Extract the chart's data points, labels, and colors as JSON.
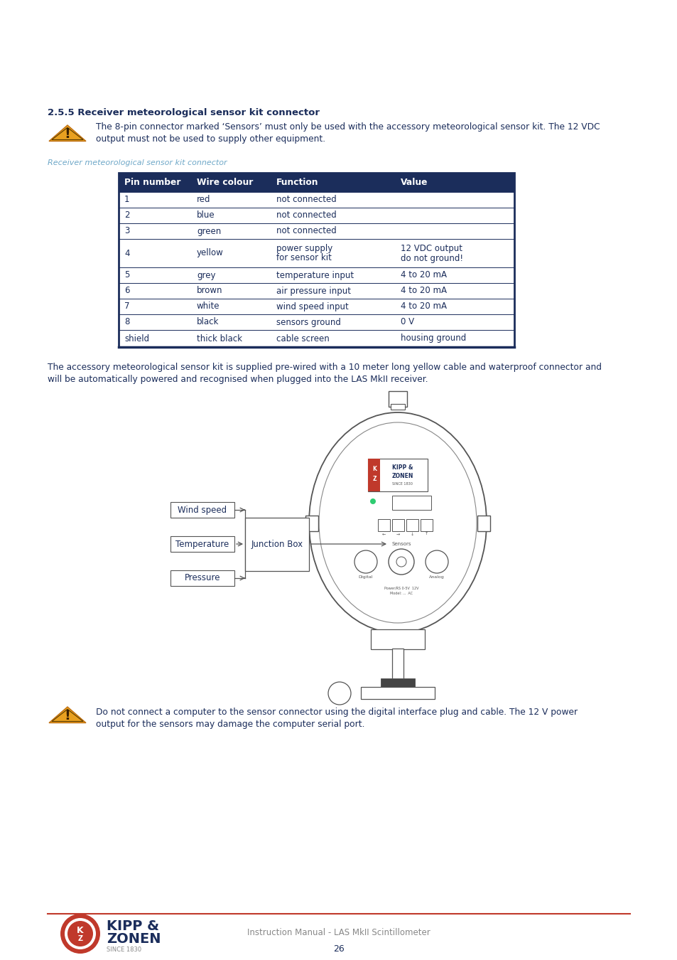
{
  "title": "2.5.5 Receiver meteorological sensor kit connector",
  "warning1_text1": "The 8-pin connector marked ‘Sensors’ must only be used with the accessory meteorological sensor kit. The 12 VDC",
  "warning1_text2": "output must not be used to supply other equipment.",
  "caption": "Receiver meteorological sensor kit connector",
  "table_header": [
    "Pin number",
    "Wire colour",
    "Function",
    "Value"
  ],
  "table_rows": [
    [
      "1",
      "red",
      "not connected",
      ""
    ],
    [
      "2",
      "blue",
      "not connected",
      ""
    ],
    [
      "3",
      "green",
      "not connected",
      ""
    ],
    [
      "4",
      "yellow",
      "power supply\nfor sensor kit",
      "12 VDC output\ndo not ground!"
    ],
    [
      "5",
      "grey",
      "temperature input",
      "4 to 20 mA"
    ],
    [
      "6",
      "brown",
      "air pressure input",
      "4 to 20 mA"
    ],
    [
      "7",
      "white",
      "wind speed input",
      "4 to 20 mA"
    ],
    [
      "8",
      "black",
      "sensors ground",
      "0 V"
    ],
    [
      "shield",
      "thick black",
      "cable screen",
      "housing ground"
    ]
  ],
  "para1_line1": "The accessory meteorological sensor kit is supplied pre-wired with a 10 meter long yellow cable and waterproof connector and",
  "para1_line2": "will be automatically powered and recognised when plugged into the LAS MkII receiver.",
  "warning2_text1": "Do not connect a computer to the sensor connector using the digital interface plug and cable. The 12 V power",
  "warning2_text2": "output for the sensors may damage the computer serial port.",
  "footer_text": "Instruction Manual - LAS MkII Scintillometer",
  "page_number": "26",
  "header_color": "#1b2d5b",
  "text_color": "#1b2d5b",
  "caption_color": "#6fa8c8",
  "line_color": "#1b2d5b",
  "background": "#ffffff",
  "footer_line_color": "#c0392b",
  "gray_text": "#808080"
}
